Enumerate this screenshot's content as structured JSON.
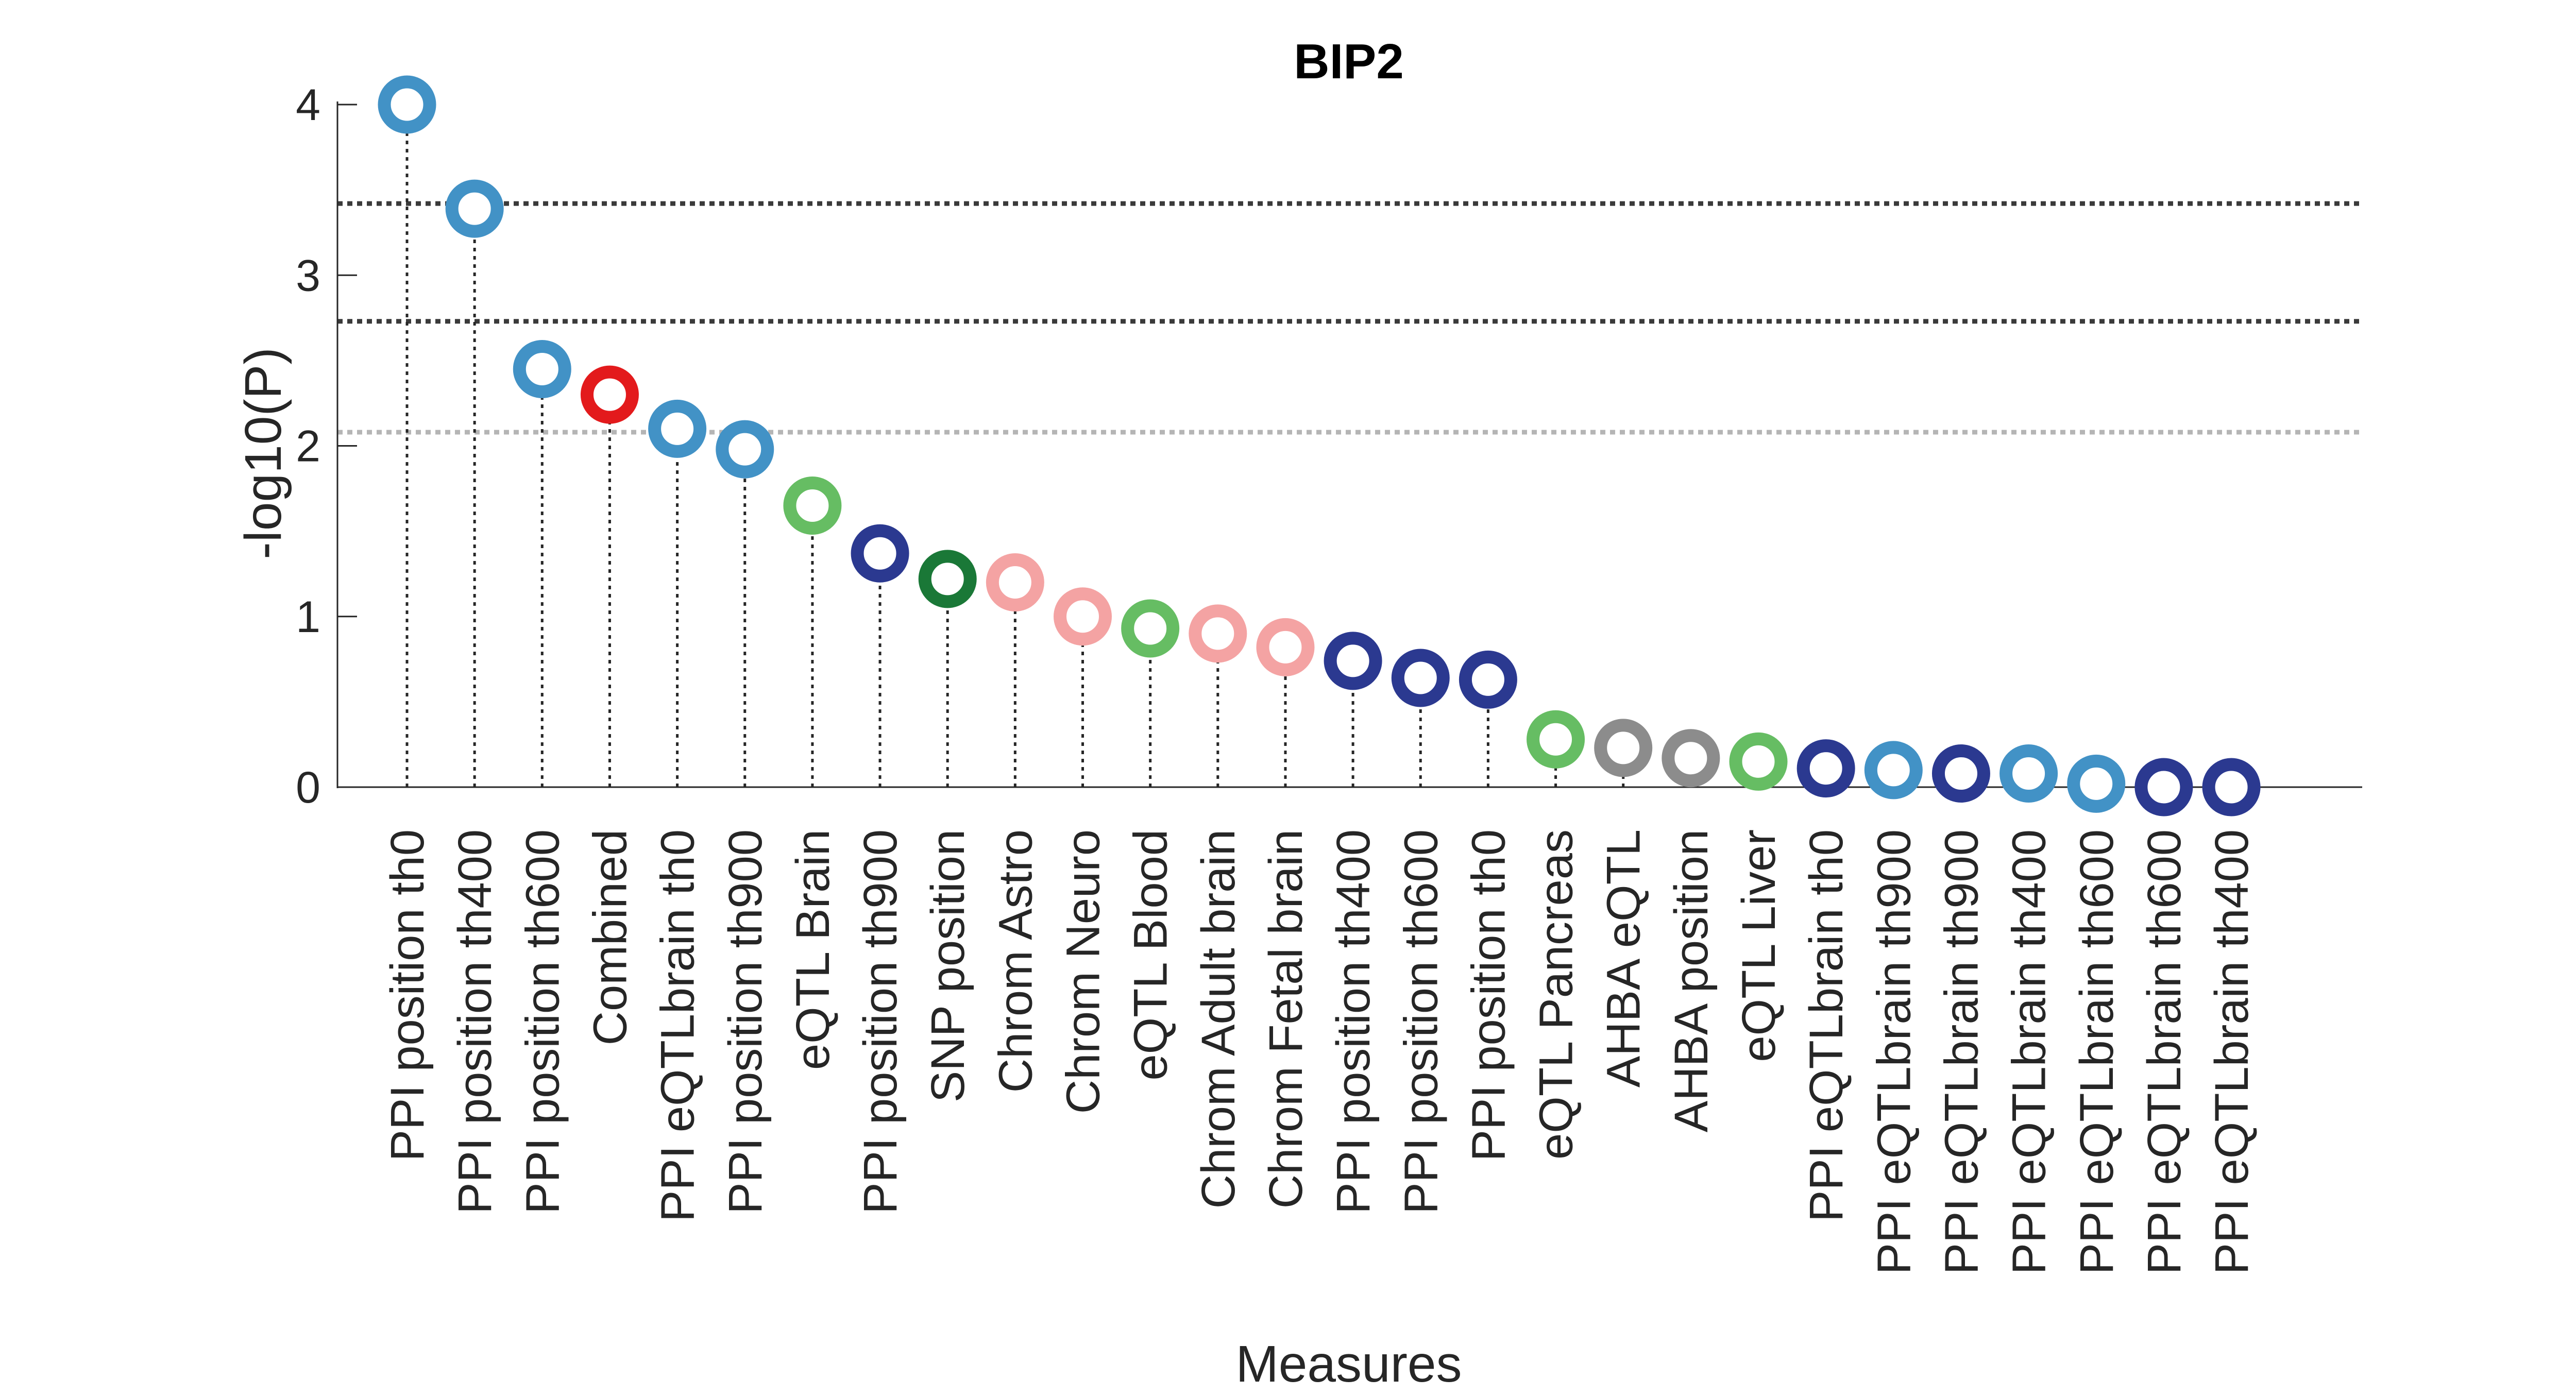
{
  "chart_data": {
    "type": "scatter",
    "title": "BIP2",
    "xlabel": "Measures",
    "ylabel": "-log10(P)",
    "ylim": [
      0,
      4.1
    ],
    "yticks": [
      0,
      1,
      2,
      3,
      4
    ],
    "grid": false,
    "legend": "none",
    "categories": [
      "PPI position th0",
      "PPI position th400",
      "PPI position th600",
      "Combined",
      "PPI eQTLbrain th0",
      "PPI position th900",
      "eQTL Brain",
      "PPI position th900",
      "SNP position",
      "Chrom Astro",
      "Chrom Neuro",
      "eQTL Blood",
      "Chrom Adult brain",
      "Chrom Fetal brain",
      "PPI position th400",
      "PPI position th600",
      "PPI position th0",
      "eQTL Pancreas",
      "AHBA eQTL",
      "AHBA position",
      "eQTL Liver",
      "PPI eQTLbrain th0",
      "PPI eQTLbrain th900",
      "PPI eQTLbrain th900",
      "PPI eQTLbrain th400",
      "PPI eQTLbrain th600",
      "PPI eQTLbrain th600",
      "PPI eQTLbrain th400"
    ],
    "values": [
      4.0,
      3.39,
      2.45,
      2.3,
      2.1,
      1.98,
      1.65,
      1.37,
      1.22,
      1.2,
      1.0,
      0.93,
      0.9,
      0.82,
      0.74,
      0.64,
      0.63,
      0.28,
      0.23,
      0.17,
      0.15,
      0.11,
      0.1,
      0.08,
      0.08,
      0.02,
      0.0,
      0.0
    ],
    "colors": [
      "#4292c6",
      "#4292c6",
      "#4292c6",
      "#e31a1c",
      "#4292c6",
      "#4292c6",
      "#66bd63",
      "#2b3990",
      "#1a7837",
      "#f4a3a3",
      "#f4a3a3",
      "#66bd63",
      "#f4a3a3",
      "#f4a3a3",
      "#2b3990",
      "#2b3990",
      "#2b3990",
      "#66bd63",
      "#8c8c8c",
      "#8c8c8c",
      "#66bd63",
      "#2b3990",
      "#4292c6",
      "#2b3990",
      "#4292c6",
      "#4292c6",
      "#2b3990",
      "#2b3990"
    ],
    "threshold_lines": [
      {
        "y": 3.42,
        "color": "#3a3a3a"
      },
      {
        "y": 2.73,
        "color": "#3a3a3a"
      },
      {
        "y": 2.08,
        "color": "#b5b5b5"
      }
    ],
    "stem_color": "#262626",
    "axis_color": "#262626"
  }
}
